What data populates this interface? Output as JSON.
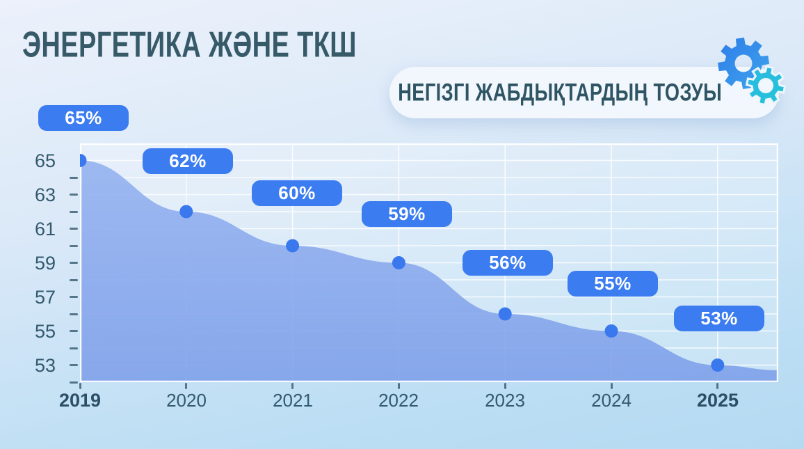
{
  "slide": {
    "title": "ЭНЕРГЕТИКА ЖӘНЕ ТКШ",
    "subtitle": "НЕГІЗГІ ЖАБДЫҚТАРДЫҢ ТОЗУЫ"
  },
  "icons": {
    "gear_large": "gear-icon",
    "gear_small": "gear-icon"
  },
  "colors": {
    "background_top": "#ecf1fb",
    "background_bottom": "#b4daf2",
    "title_text": "#375a68",
    "card_background": "#f2f7fd",
    "accent_blue": "#3b7cf1",
    "point_blue": "#3a78ee",
    "area_fill_top": "#93b1f0",
    "area_fill_bottom": "#7c9ee9",
    "axis_text": "#33596e",
    "gridline": "#ffffff",
    "gear_blue": "#2d7ee9",
    "gear_cyan": "#2bb9e2"
  },
  "chart_data": {
    "type": "area",
    "title": "НЕГІЗГІ ЖАБДЫҚТАРДЫҢ ТОЗУЫ",
    "categories": [
      "2019",
      "2020",
      "2021",
      "2022",
      "2023",
      "2024",
      "2025"
    ],
    "values": [
      65,
      62,
      60,
      59,
      56,
      55,
      53
    ],
    "point_labels": [
      "65%",
      "62%",
      "60%",
      "59%",
      "56%",
      "55%",
      "53%"
    ],
    "xlabel": "",
    "ylabel": "",
    "ylim": [
      52,
      66
    ],
    "yticks_labeled": [
      65,
      63,
      61,
      59,
      57,
      55,
      53
    ],
    "ytick_minor_interval": 1,
    "grid": true,
    "legend_position": "none",
    "right_edge_value": 52.7,
    "emphasized_categories": [
      "2019",
      "2025"
    ]
  }
}
